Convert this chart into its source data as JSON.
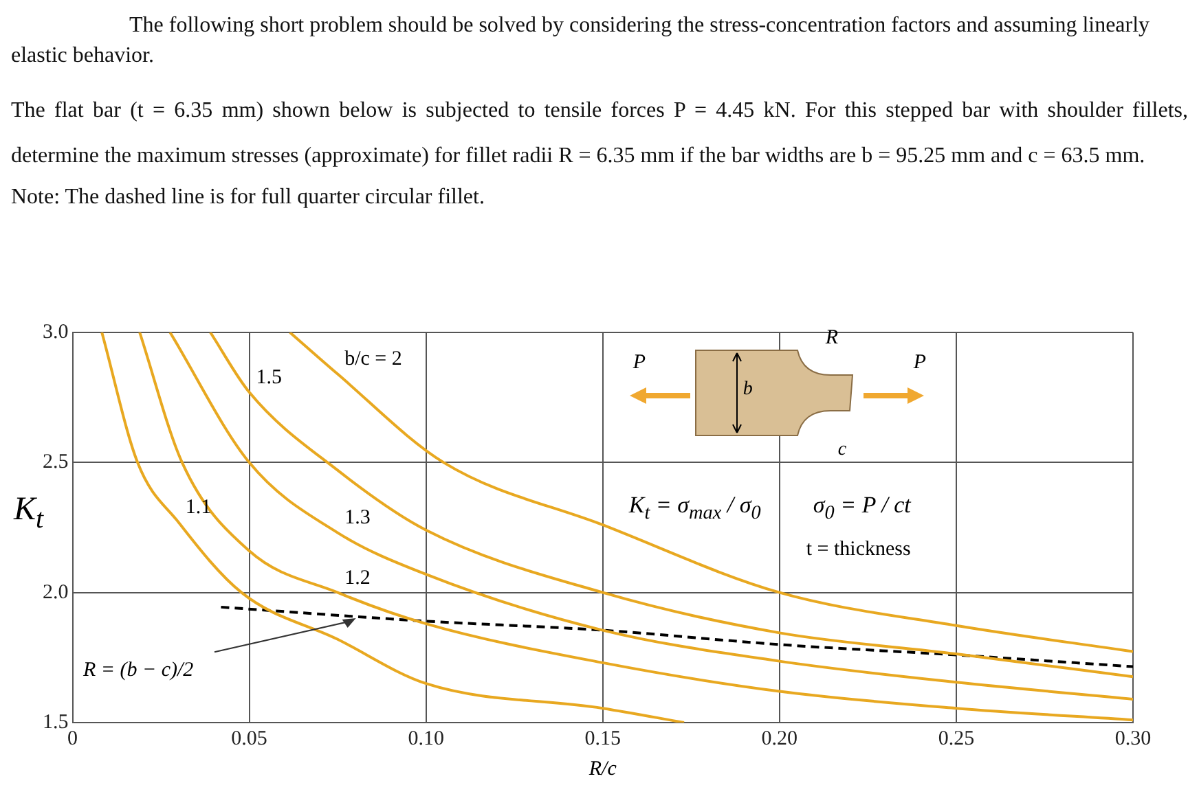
{
  "chart_data": {
    "type": "line",
    "title": "The following short problem should be solved by considering the stress-concentration factors and assuming linearly elastic behavior.",
    "subtitle": "The flat bar (t = 6.35 mm) shown below is subjected to tensile forces P = 4.45 kN. For this stepped bar with shoulder fillets, determine the maximum stresses (approximate) for fillet radii R = 6.35 mm if the bar widths are b = 95.25 mm and c = 63.5 mm.",
    "annotations": [
      "Note: The dashed line is for full quarter circular fillet.",
      "P",
      "P",
      "R",
      "b",
      "c",
      "K$_{t}$ = σ$_{max}$ / σ$_{0}$",
      "σ$_{0}$ = P / ct",
      "t = thickness"
    ],
    "xlabel": "R/c",
    "ylabel": "K$_{t}$",
    "series": [
      {
        "name": "1.1",
        "color": "#e8a820",
        "x": [
          0.0083,
          0.0184,
          0.03,
          0.0478,
          0.075,
          0.1,
          0.15,
          0.173
        ],
        "values": [
          3.0,
          2.5,
          2.27,
          2.0,
          1.82,
          1.65,
          1.555,
          1.5
        ]
      },
      {
        "name": "1.2",
        "color": "#e8a820",
        "x": [
          0.019,
          0.031,
          0.05,
          0.075,
          0.1,
          0.15,
          0.2,
          0.25,
          0.3
        ],
        "values": [
          3.0,
          2.5,
          2.16,
          2.0,
          1.88,
          1.73,
          1.62,
          1.555,
          1.51
        ]
      },
      {
        "name": "1.3",
        "color": "#e8a820",
        "x": [
          0.0276,
          0.05,
          0.075,
          0.1,
          0.15,
          0.2,
          0.25,
          0.3
        ],
        "values": [
          3.0,
          2.5,
          2.23,
          2.07,
          1.855,
          1.736,
          1.655,
          1.59
        ]
      },
      {
        "name": "1.5",
        "color": "#e8a820",
        "x": [
          0.039,
          0.05,
          0.075,
          0.1,
          0.15,
          0.2,
          0.25,
          0.3
        ],
        "values": [
          3.0,
          2.77,
          2.47,
          2.24,
          2.0,
          1.845,
          1.764,
          1.676
        ]
      },
      {
        "name": "b/c = 2",
        "color": "#e8a820",
        "x": [
          0.0615,
          0.075,
          0.105,
          0.15,
          0.2,
          0.25,
          0.3
        ],
        "values": [
          3.0,
          2.84,
          2.5,
          2.26,
          2.0,
          1.873,
          1.773
        ]
      },
      {
        "name": "R = (b − c)/2",
        "color": "#000000",
        "line_style": "dashed",
        "x": [
          0.042,
          0.1,
          0.15,
          0.2,
          0.25,
          0.3
        ],
        "values": [
          1.944,
          1.89,
          1.855,
          1.8,
          1.76,
          1.715
        ]
      }
    ],
    "xlim": [
      0,
      0.3
    ],
    "xticks": [
      0,
      {
        "value": 0.05,
        "label": "0.05"
      },
      {
        "value": 0.1,
        "label": "0.10"
      },
      {
        "value": 0.15,
        "label": "0.15"
      },
      {
        "value": 0.2,
        "label": "0.20"
      },
      {
        "value": 0.25,
        "label": "0.25"
      },
      {
        "value": 0.3,
        "label": "0.30"
      }
    ],
    "ylim": [
      1.5,
      3.0
    ],
    "yticks": [
      1.5,
      {
        "value": 2,
        "label": "2.0"
      },
      2.5,
      {
        "value": 3,
        "label": "3.0"
      }
    ],
    "grid": true,
    "legend": false,
    "marker": "none"
  }
}
